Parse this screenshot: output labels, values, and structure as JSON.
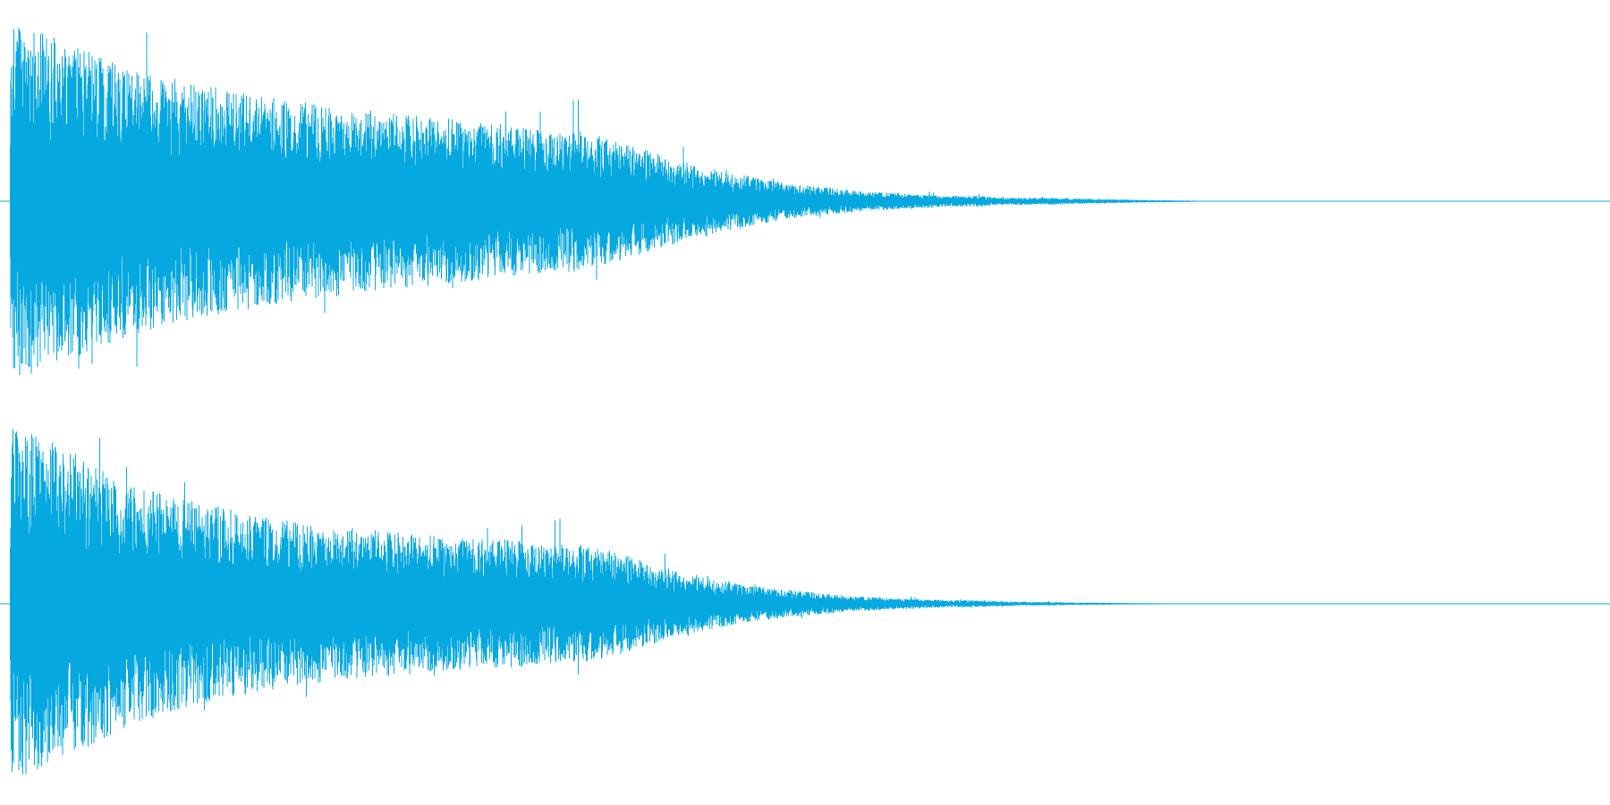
{
  "waveform": {
    "color": "#06a8e0",
    "channels": [
      {
        "name": "",
        "envelope": [
          0.99,
          0.97,
          0.94,
          0.9,
          0.86,
          0.82,
          0.78,
          0.75,
          0.72,
          0.69,
          0.67,
          0.65,
          0.63,
          0.61,
          0.6,
          0.58,
          0.56,
          0.55,
          0.54,
          0.53,
          0.52,
          0.5,
          0.49,
          0.48,
          0.47,
          0.46,
          0.45,
          0.44,
          0.43,
          0.41,
          0.4,
          0.39,
          0.4,
          0.38,
          0.35,
          0.32,
          0.29,
          0.26,
          0.23,
          0.2,
          0.18,
          0.16,
          0.14,
          0.12,
          0.1,
          0.09,
          0.08,
          0.07,
          0.06,
          0.05,
          0.05,
          0.04,
          0.04,
          0.03,
          0.03,
          0.03,
          0.02,
          0.02,
          0.02,
          0.02,
          0.015,
          0.015,
          0.012,
          0.01,
          0.008,
          0.006,
          0.005,
          0.004,
          0.003,
          0.002,
          0.0,
          0.0,
          0.0,
          0.0,
          0.0,
          0.0,
          0.0,
          0.0,
          0.0,
          0.0
        ],
        "end_fraction": 0.85
      },
      {
        "name": "",
        "envelope": [
          0.98,
          0.96,
          0.93,
          0.88,
          0.82,
          0.77,
          0.72,
          0.68,
          0.64,
          0.61,
          0.58,
          0.56,
          0.54,
          0.52,
          0.5,
          0.48,
          0.46,
          0.45,
          0.44,
          0.43,
          0.42,
          0.41,
          0.4,
          0.39,
          0.38,
          0.37,
          0.37,
          0.36,
          0.36,
          0.35,
          0.34,
          0.33,
          0.34,
          0.32,
          0.3,
          0.27,
          0.24,
          0.21,
          0.18,
          0.16,
          0.14,
          0.12,
          0.1,
          0.09,
          0.08,
          0.07,
          0.06,
          0.05,
          0.04,
          0.04,
          0.03,
          0.03,
          0.025,
          0.02,
          0.02,
          0.018,
          0.015,
          0.012,
          0.01,
          0.01,
          0.008,
          0.007,
          0.006,
          0.005,
          0.004,
          0.003,
          0.003,
          0.002,
          0.002,
          0.001,
          0.0,
          0.0,
          0.0,
          0.0,
          0.0,
          0.0,
          0.0,
          0.0,
          0.0,
          0.0
        ],
        "end_fraction": 0.87
      }
    ]
  }
}
